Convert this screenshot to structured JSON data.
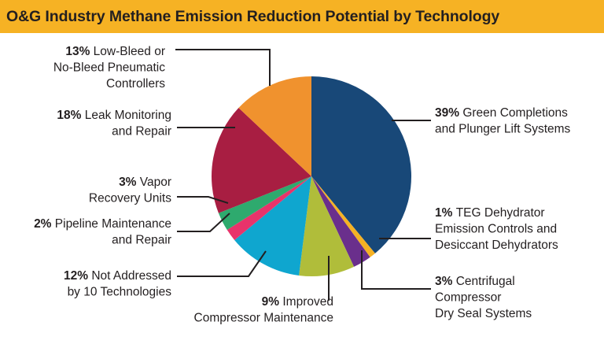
{
  "title": "O&G Industry Methane Emission Reduction Potential by Technology",
  "colors": {
    "title_bar": "#f6b224",
    "slices": [
      "#184878",
      "#f6b224",
      "#6a2f8c",
      "#b0bd3a",
      "#0fa6cf",
      "#e8336b",
      "#2eaa6e",
      "#a81e42",
      "#f0922e"
    ]
  },
  "chart_data": {
    "type": "pie",
    "title": "O&G Industry Methane Emission Reduction Potential by Technology",
    "slices": [
      {
        "label": "Green Completions and Plunger Lift Systems",
        "pct_text": "39%",
        "lines": [
          "Green Completions",
          "and Plunger Lift Systems"
        ],
        "value": 39
      },
      {
        "label": "TEG Dehydrator Emission Controls and Desiccant Dehydrators",
        "pct_text": "1%",
        "lines": [
          "TEG Dehydrator",
          "Emission Controls and",
          "Desiccant Dehydrators"
        ],
        "value": 1
      },
      {
        "label": "Centrifugal Compressor Dry Seal Systems",
        "pct_text": "3%",
        "lines": [
          "Centrifugal",
          "Compressor",
          "Dry Seal Systems"
        ],
        "value": 3
      },
      {
        "label": "Improved Compressor Maintenance",
        "pct_text": "9%",
        "lines": [
          "Improved",
          "Compressor Maintenance"
        ],
        "value": 9
      },
      {
        "label": "Not Addressed by 10 Technologies",
        "pct_text": "12%",
        "lines": [
          "Not Addressed",
          "by 10 Technologies"
        ],
        "value": 12
      },
      {
        "label": "Pipeline Maintenance and Repair",
        "pct_text": "2%",
        "lines": [
          "Pipeline Maintenance",
          "and Repair"
        ],
        "value": 2
      },
      {
        "label": "Vapor Recovery Units",
        "pct_text": "3%",
        "lines": [
          "Vapor",
          "Recovery Units"
        ],
        "value": 3
      },
      {
        "label": "Leak Monitoring and Repair",
        "pct_text": "18%",
        "lines": [
          "Leak Monitoring",
          "and Repair"
        ],
        "value": 18
      },
      {
        "label": "Low-Bleed or No-Bleed Pneumatic Controllers",
        "pct_text": "13%",
        "lines": [
          "Low-Bleed or",
          "No-Bleed Pneumatic",
          "Controllers"
        ],
        "value": 13
      }
    ]
  }
}
